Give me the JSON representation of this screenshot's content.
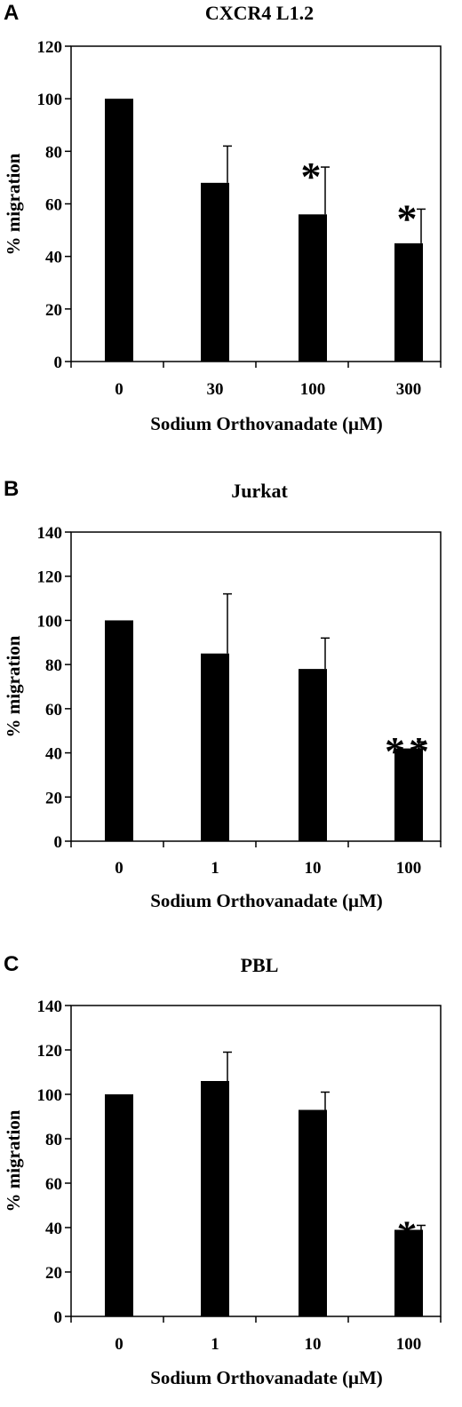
{
  "chart_data": [
    {
      "type": "bar",
      "panel": "A",
      "title": "CXCR4 L1.2",
      "xlabel": "Sodium Orthovanadate (μM)",
      "ylabel": "% migration",
      "categories": [
        "0",
        "30",
        "100",
        "300"
      ],
      "values": [
        100,
        68,
        56,
        45
      ],
      "error_upper": [
        0,
        14,
        18,
        13
      ],
      "annotations": [
        "",
        "",
        "*",
        "*"
      ],
      "ylim": [
        0,
        120
      ],
      "yticks": [
        0,
        20,
        40,
        60,
        80,
        100,
        120
      ],
      "bar_color": "#000000"
    },
    {
      "type": "bar",
      "panel": "B",
      "title": "Jurkat",
      "xlabel": "Sodium Orthovanadate (μM)",
      "ylabel": "% migration",
      "categories": [
        "0",
        "1",
        "10",
        "100"
      ],
      "values": [
        100,
        85,
        78,
        42
      ],
      "error_upper": [
        0,
        27,
        14,
        3
      ],
      "annotations": [
        "",
        "",
        "",
        "**"
      ],
      "ylim": [
        0,
        140
      ],
      "yticks": [
        0,
        20,
        40,
        60,
        80,
        100,
        120,
        140
      ],
      "bar_color": "#000000"
    },
    {
      "type": "bar",
      "panel": "C",
      "title": "PBL",
      "xlabel": "Sodium Orthovanadate (μM)",
      "ylabel": "% migration",
      "categories": [
        "0",
        "1",
        "10",
        "100"
      ],
      "values": [
        100,
        106,
        93,
        39
      ],
      "error_upper": [
        0,
        13,
        8,
        2
      ],
      "annotations": [
        "",
        "",
        "",
        "*"
      ],
      "ylim": [
        0,
        140
      ],
      "yticks": [
        0,
        20,
        40,
        60,
        80,
        100,
        120,
        140
      ],
      "bar_color": "#000000"
    }
  ]
}
